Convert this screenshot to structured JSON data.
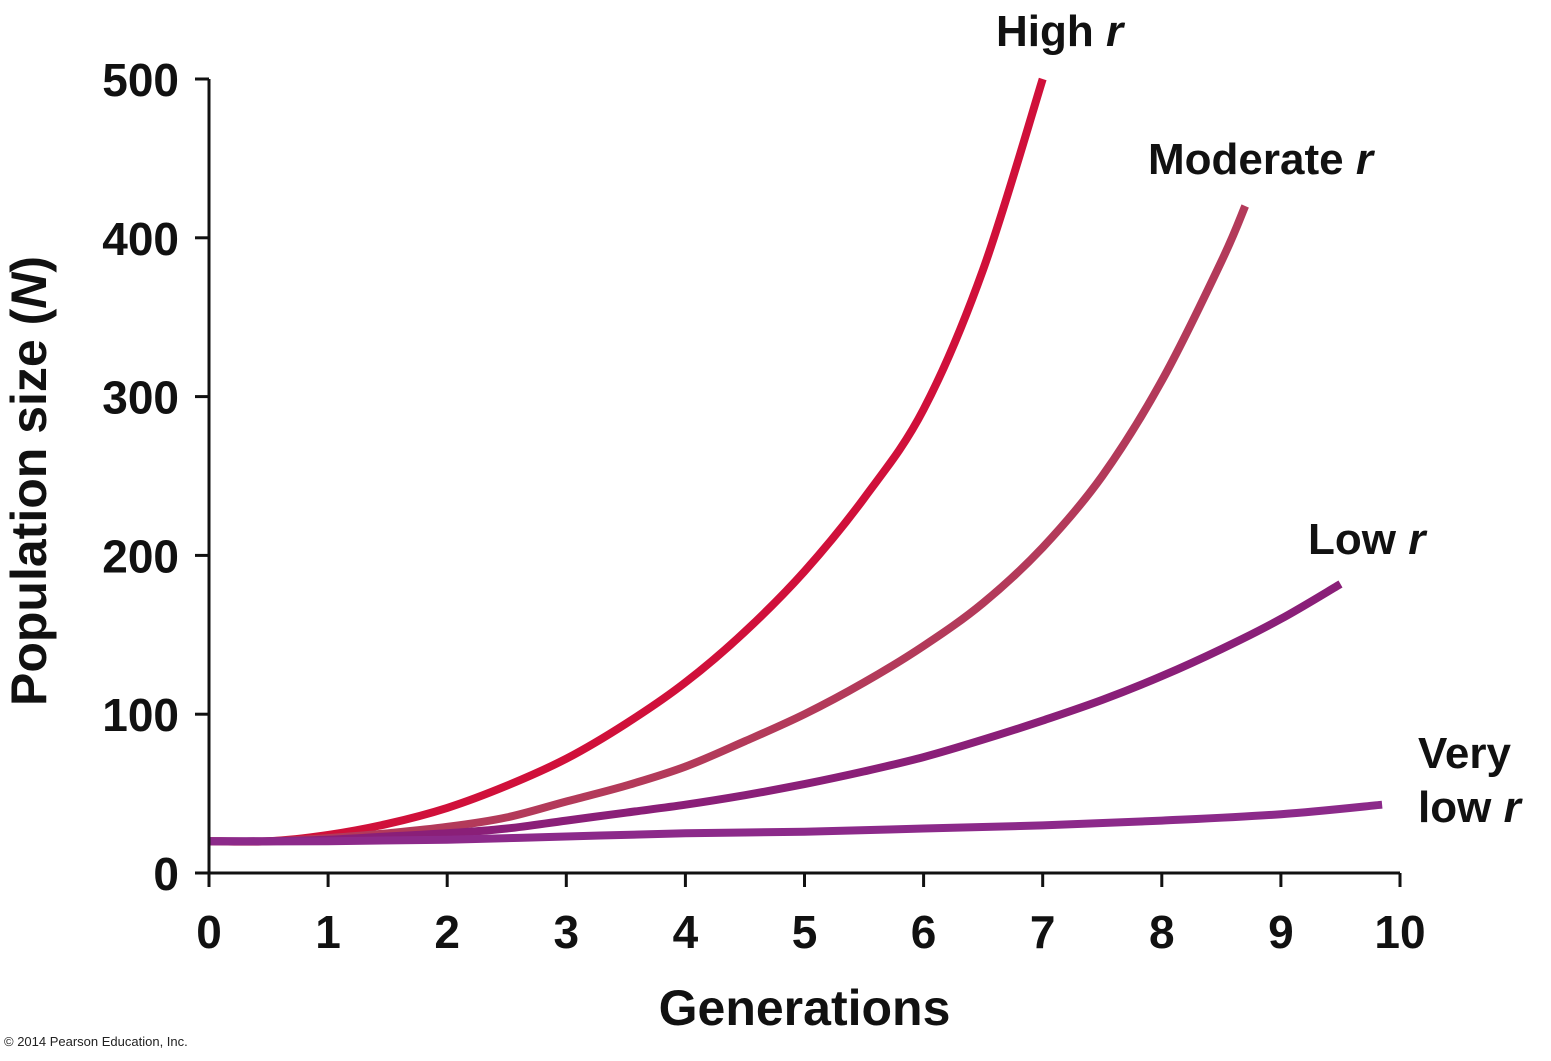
{
  "chart_data": {
    "type": "line",
    "xlabel": "Generations",
    "ylabel_prefix": "Population size (",
    "ylabel_var": "N",
    "ylabel_suffix": ")",
    "xlim": [
      0,
      10
    ],
    "ylim": [
      0,
      500
    ],
    "x_ticks": [
      "0",
      "1",
      "2",
      "3",
      "4",
      "5",
      "6",
      "7",
      "8",
      "9",
      "10"
    ],
    "y_ticks": [
      "0",
      "100",
      "200",
      "300",
      "400",
      "500"
    ],
    "grid": false,
    "legend": "direct-labels-at-line-ends",
    "series": [
      {
        "label_lines": [
          "High "
        ],
        "label_var": "r",
        "color": "#d0103a",
        "x": [
          0,
          0.5,
          1,
          1.5,
          2,
          2.5,
          3,
          3.5,
          4,
          4.5,
          5,
          5.5,
          6,
          6.5,
          7
        ],
        "y": [
          20,
          20,
          24,
          31,
          41,
          55,
          72,
          94,
          120,
          152,
          190,
          236,
          292,
          380,
          500
        ]
      },
      {
        "label_lines": [
          "Moderate "
        ],
        "label_var": "r",
        "color": "#b33a5a",
        "x": [
          0,
          0.5,
          1,
          1.5,
          2,
          2.5,
          3,
          3.5,
          4,
          4.5,
          5,
          5.5,
          6,
          6.5,
          7,
          7.5,
          8,
          8.5,
          8.7
        ],
        "y": [
          20,
          20,
          22,
          25,
          29,
          35,
          45,
          55,
          67,
          83,
          100,
          120,
          143,
          170,
          205,
          250,
          310,
          385,
          420
        ]
      },
      {
        "label_lines": [
          "Low "
        ],
        "label_var": "r",
        "color": "#8a1f78",
        "x": [
          0,
          0.5,
          1,
          1.5,
          2,
          2.5,
          3,
          3.5,
          4,
          4.5,
          5,
          5.5,
          6,
          6.5,
          7,
          7.5,
          8,
          8.5,
          9,
          9.5
        ],
        "y": [
          20,
          20,
          21,
          23,
          25,
          28,
          33,
          38,
          43,
          49,
          56,
          64,
          73,
          84,
          96,
          109,
          124,
          141,
          160,
          182
        ]
      },
      {
        "label_lines": [
          "Very",
          "low "
        ],
        "label_var": "r",
        "color": "#8c2a8a",
        "x": [
          0,
          1,
          2,
          3,
          4,
          5,
          6,
          7,
          8,
          9,
          9.85
        ],
        "y": [
          20,
          20,
          21,
          23,
          25,
          26,
          28,
          30,
          33,
          37,
          43
        ]
      }
    ]
  },
  "copyright": "© 2014 Pearson Education, Inc."
}
